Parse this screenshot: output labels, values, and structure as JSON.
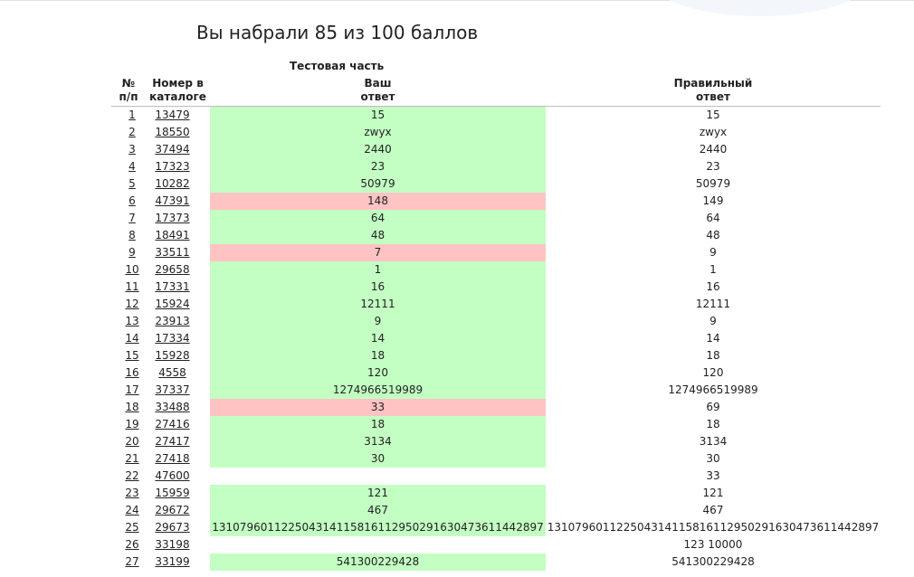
{
  "score_text": "Вы набрали 85 из 100 баллов",
  "headers": {
    "test_part": "Тестовая часть",
    "num_line1": "№",
    "num_line2": "п/п",
    "catalog_line1": "Номер в",
    "catalog_line2": "каталоге",
    "your_line1": "Ваш",
    "your_line2": "ответ",
    "correct_line1": "Правильный",
    "correct_line2": "ответ"
  },
  "colors": {
    "correct_bg": "#c3ffc3",
    "wrong_bg": "#ffc3c3"
  },
  "rows": [
    {
      "n": "1",
      "catalog": "13479",
      "answer": "15",
      "correct": "15",
      "status": "ok"
    },
    {
      "n": "2",
      "catalog": "18550",
      "answer": "zwyx",
      "correct": "zwyx",
      "status": "ok"
    },
    {
      "n": "3",
      "catalog": "37494",
      "answer": "2440",
      "correct": "2440",
      "status": "ok"
    },
    {
      "n": "4",
      "catalog": "17323",
      "answer": "23",
      "correct": "23",
      "status": "ok"
    },
    {
      "n": "5",
      "catalog": "10282",
      "answer": "50979",
      "correct": "50979",
      "status": "ok"
    },
    {
      "n": "6",
      "catalog": "47391",
      "answer": "148",
      "correct": "149",
      "status": "bad"
    },
    {
      "n": "7",
      "catalog": "17373",
      "answer": "64",
      "correct": "64",
      "status": "ok"
    },
    {
      "n": "8",
      "catalog": "18491",
      "answer": "48",
      "correct": "48",
      "status": "ok"
    },
    {
      "n": "9",
      "catalog": "33511",
      "answer": "7",
      "correct": "9",
      "status": "bad"
    },
    {
      "n": "10",
      "catalog": "29658",
      "answer": "1",
      "correct": "1",
      "status": "ok"
    },
    {
      "n": "11",
      "catalog": "17331",
      "answer": "16",
      "correct": "16",
      "status": "ok"
    },
    {
      "n": "12",
      "catalog": "15924",
      "answer": "12111",
      "correct": "12111",
      "status": "ok"
    },
    {
      "n": "13",
      "catalog": "23913",
      "answer": "9",
      "correct": "9",
      "status": "ok"
    },
    {
      "n": "14",
      "catalog": "17334",
      "answer": "14",
      "correct": "14",
      "status": "ok"
    },
    {
      "n": "15",
      "catalog": "15928",
      "answer": "18",
      "correct": "18",
      "status": "ok"
    },
    {
      "n": "16",
      "catalog": "4558",
      "answer": "120",
      "correct": "120",
      "status": "ok"
    },
    {
      "n": "17",
      "catalog": "37337",
      "answer": "1274966519989",
      "correct": "1274966519989",
      "status": "ok"
    },
    {
      "n": "18",
      "catalog": "33488",
      "answer": "33",
      "correct": "69",
      "status": "bad"
    },
    {
      "n": "19",
      "catalog": "27416",
      "answer": "18",
      "correct": "18",
      "status": "ok"
    },
    {
      "n": "20",
      "catalog": "27417",
      "answer": "3134",
      "correct": "3134",
      "status": "ok"
    },
    {
      "n": "21",
      "catalog": "27418",
      "answer": "30",
      "correct": "30",
      "status": "ok"
    },
    {
      "n": "22",
      "catalog": "47600",
      "answer": "",
      "correct": "33",
      "status": "none"
    },
    {
      "n": "23",
      "catalog": "15959",
      "answer": "121",
      "correct": "121",
      "status": "ok"
    },
    {
      "n": "24",
      "catalog": "29672",
      "answer": "467",
      "correct": "467",
      "status": "ok"
    },
    {
      "n": "25",
      "catalog": "29673",
      "answer": "131079601122504314115816112950291630473611442897",
      "correct": "131079601122504314115816112950291630473611442897",
      "status": "ok"
    },
    {
      "n": "26",
      "catalog": "33198",
      "answer": "",
      "correct": "123 10000",
      "status": "none"
    },
    {
      "n": "27",
      "catalog": "33199",
      "answer": "541300229428",
      "correct": "541300229428",
      "status": "ok"
    }
  ]
}
